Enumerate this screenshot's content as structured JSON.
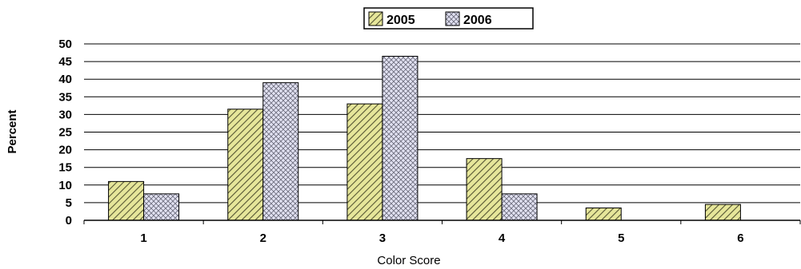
{
  "chart_data": {
    "type": "bar",
    "categories": [
      "1",
      "2",
      "3",
      "4",
      "5",
      "6"
    ],
    "series": [
      {
        "name": "2005",
        "values": [
          11,
          31.5,
          33,
          17.5,
          3.5,
          4.5
        ],
        "color": "#e8e8a0",
        "pattern": "diagonal-stripes"
      },
      {
        "name": "2006",
        "values": [
          7.5,
          39,
          46.5,
          7.5,
          null,
          null
        ],
        "color": "#dcdcf0",
        "pattern": "crosshatch"
      }
    ],
    "xlabel": "Color Score",
    "ylabel": "Percent",
    "ylim": [
      0,
      50
    ],
    "yticks": [
      0,
      5,
      10,
      15,
      20,
      25,
      30,
      35,
      40,
      45,
      50
    ],
    "grid": true,
    "legend_position": "top-center"
  }
}
